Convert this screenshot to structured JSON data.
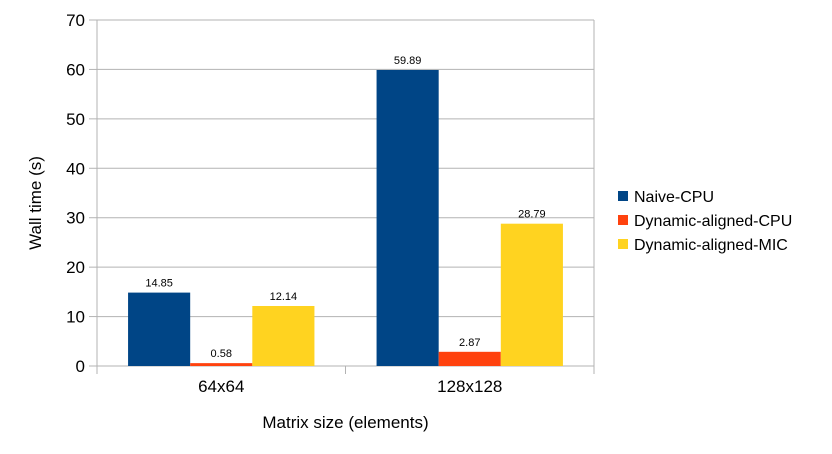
{
  "chart_data": {
    "type": "bar",
    "title": "",
    "xlabel": "Matrix size (elements)",
    "ylabel": "Wall time (s)",
    "categories": [
      "64x64",
      "128x128"
    ],
    "series": [
      {
        "name": "Naive-CPU",
        "values": [
          14.85,
          59.89
        ],
        "labels": [
          "14.85",
          "59.89"
        ],
        "color": "#004586"
      },
      {
        "name": "Dynamic-aligned-CPU",
        "values": [
          0.58,
          2.87
        ],
        "labels": [
          "0.58",
          "2.87"
        ],
        "color": "#ff420e"
      },
      {
        "name": "Dynamic-aligned-MIC",
        "values": [
          12.14,
          28.79
        ],
        "labels": [
          "12.14",
          "28.79"
        ],
        "color": "#ffd320"
      }
    ],
    "ylim": [
      0,
      70
    ],
    "yticks": [
      0,
      10,
      20,
      30,
      40,
      50,
      60,
      70
    ],
    "grid": true,
    "legend_position": "right"
  }
}
